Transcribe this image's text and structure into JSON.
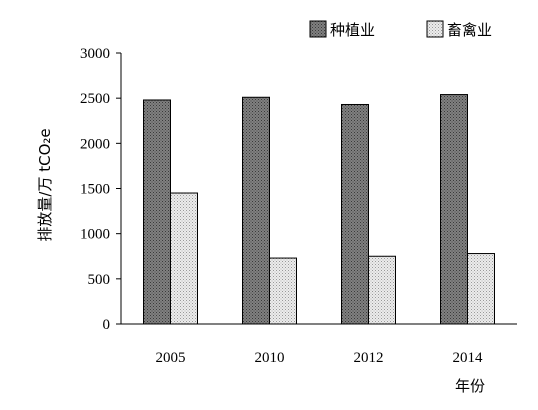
{
  "chart_data": {
    "type": "bar",
    "categories": [
      "2005",
      "2010",
      "2012",
      "2014"
    ],
    "series": [
      {
        "name": "种植业",
        "values": [
          2480,
          2510,
          2430,
          2540
        ],
        "pattern": "dark-stipple"
      },
      {
        "name": "畜禽业",
        "values": [
          1450,
          730,
          750,
          780
        ],
        "pattern": "light-stipple"
      }
    ],
    "ylabel": "排放量/万 tCO₂e",
    "xlabel": "年份",
    "ylim": [
      0,
      3000
    ],
    "yticks": [
      "0",
      "500",
      "1000",
      "1500",
      "2000",
      "2500",
      "3000"
    ],
    "legend": "top-right",
    "grid": false,
    "colors": {
      "dark": "#6e6e6e",
      "light": "#e2e2e2",
      "axis": "#000000"
    }
  }
}
